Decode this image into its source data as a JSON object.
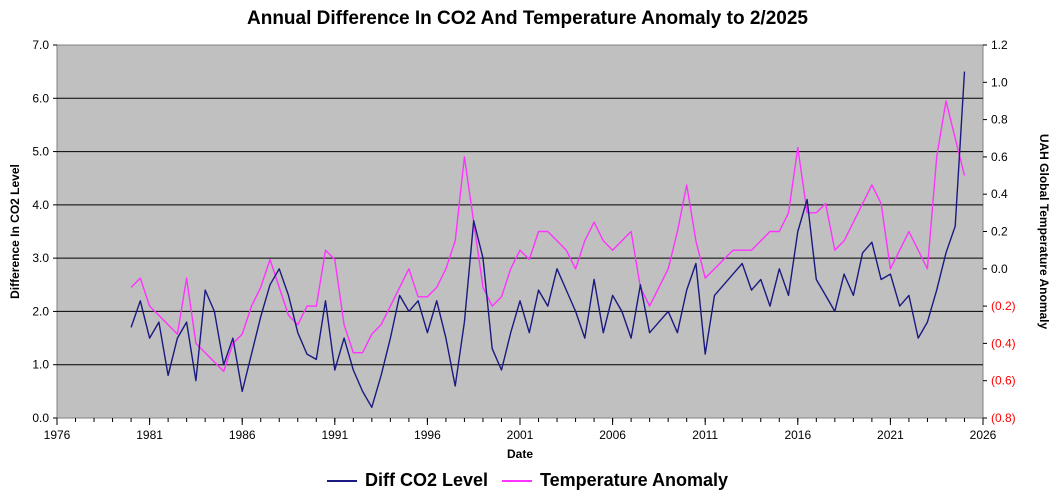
{
  "chart_data": {
    "type": "line",
    "title": "Annual Difference In CO2  And Temperature Anomaly to 2/2025",
    "xlabel": "Date",
    "ylabel": "Difference In CO2 Level",
    "y2label": "UAH Global Temperature Anomaly",
    "xlim": [
      1976,
      2026
    ],
    "ylim": [
      0,
      7
    ],
    "y2lim": [
      -0.8,
      1.2
    ],
    "x_ticks": [
      "1976",
      "1981",
      "1986",
      "1991",
      "1996",
      "2001",
      "2006",
      "2011",
      "2016",
      "2021",
      "2026"
    ],
    "y_ticks": [
      "0.0",
      "1.0",
      "2.0",
      "3.0",
      "4.0",
      "5.0",
      "6.0",
      "7.0"
    ],
    "y2_ticks": [
      "(0.8)",
      "(0.6)",
      "(0.4)",
      "(0.2)",
      "0.0",
      "0.2",
      "0.4",
      "0.6",
      "0.8",
      "1.0",
      "1.2"
    ],
    "grid": "horizontal",
    "legend": "bottom",
    "series": [
      {
        "name": "Diff CO2 Level",
        "color": "#1a1a80",
        "axis": "left",
        "x": [
          1980.0,
          1980.5,
          1981.0,
          1981.5,
          1982.0,
          1982.5,
          1983.0,
          1983.5,
          1984.0,
          1984.5,
          1985.0,
          1985.5,
          1986.0,
          1986.5,
          1987.0,
          1987.5,
          1988.0,
          1988.5,
          1989.0,
          1989.5,
          1990.0,
          1990.5,
          1991.0,
          1991.5,
          1992.0,
          1992.5,
          1993.0,
          1993.5,
          1994.0,
          1994.5,
          1995.0,
          1995.5,
          1996.0,
          1996.5,
          1997.0,
          1997.5,
          1998.0,
          1998.5,
          1999.0,
          1999.5,
          2000.0,
          2000.5,
          2001.0,
          2001.5,
          2002.0,
          2002.5,
          2003.0,
          2003.5,
          2004.0,
          2004.5,
          2005.0,
          2005.5,
          2006.0,
          2006.5,
          2007.0,
          2007.5,
          2008.0,
          2008.5,
          2009.0,
          2009.5,
          2010.0,
          2010.5,
          2011.0,
          2011.5,
          2012.0,
          2012.5,
          2013.0,
          2013.5,
          2014.0,
          2014.5,
          2015.0,
          2015.5,
          2016.0,
          2016.5,
          2017.0,
          2017.5,
          2018.0,
          2018.5,
          2019.0,
          2019.5,
          2020.0,
          2020.5,
          2021.0,
          2021.5,
          2022.0,
          2022.5,
          2023.0,
          2023.5,
          2024.0,
          2024.5,
          2025.0
        ],
        "values": [
          1.7,
          2.2,
          1.5,
          1.8,
          0.8,
          1.5,
          1.8,
          0.7,
          2.4,
          2.0,
          1.0,
          1.5,
          0.5,
          1.2,
          1.9,
          2.5,
          2.8,
          2.3,
          1.6,
          1.2,
          1.1,
          2.2,
          0.9,
          1.5,
          0.9,
          0.5,
          0.2,
          0.8,
          1.5,
          2.3,
          2.0,
          2.2,
          1.6,
          2.2,
          1.5,
          0.6,
          1.8,
          3.7,
          3.0,
          1.3,
          0.9,
          1.6,
          2.2,
          1.6,
          2.4,
          2.1,
          2.8,
          2.4,
          2.0,
          1.5,
          2.6,
          1.6,
          2.3,
          2.0,
          1.5,
          2.5,
          1.6,
          1.8,
          2.0,
          1.6,
          2.4,
          2.9,
          1.2,
          2.3,
          2.5,
          2.7,
          2.9,
          2.4,
          2.6,
          2.1,
          2.8,
          2.3,
          3.5,
          4.1,
          2.6,
          2.3,
          2.0,
          2.7,
          2.3,
          3.1,
          3.3,
          2.6,
          2.7,
          2.1,
          2.3,
          1.5,
          1.8,
          2.4,
          3.1,
          3.6,
          6.5
        ]
      },
      {
        "name": "Temperature Anomaly",
        "color": "#ff33ff",
        "axis": "right",
        "x": [
          1980.0,
          1980.5,
          1981.0,
          1981.5,
          1982.0,
          1982.5,
          1983.0,
          1983.5,
          1984.0,
          1984.5,
          1985.0,
          1985.5,
          1986.0,
          1986.5,
          1987.0,
          1987.5,
          1988.0,
          1988.5,
          1989.0,
          1989.5,
          1990.0,
          1990.5,
          1991.0,
          1991.5,
          1992.0,
          1992.5,
          1993.0,
          1993.5,
          1994.0,
          1994.5,
          1995.0,
          1995.5,
          1996.0,
          1996.5,
          1997.0,
          1997.5,
          1998.0,
          1998.5,
          1999.0,
          1999.5,
          2000.0,
          2000.5,
          2001.0,
          2001.5,
          2002.0,
          2002.5,
          2003.0,
          2003.5,
          2004.0,
          2004.5,
          2005.0,
          2005.5,
          2006.0,
          2006.5,
          2007.0,
          2007.5,
          2008.0,
          2008.5,
          2009.0,
          2009.5,
          2010.0,
          2010.5,
          2011.0,
          2011.5,
          2012.0,
          2012.5,
          2013.0,
          2013.5,
          2014.0,
          2014.5,
          2015.0,
          2015.5,
          2016.0,
          2016.5,
          2017.0,
          2017.5,
          2018.0,
          2018.5,
          2019.0,
          2019.5,
          2020.0,
          2020.5,
          2021.0,
          2021.5,
          2022.0,
          2022.5,
          2023.0,
          2023.5,
          2024.0,
          2024.5,
          2025.0
        ],
        "values": [
          -0.1,
          -0.05,
          -0.2,
          -0.25,
          -0.3,
          -0.35,
          -0.05,
          -0.4,
          -0.45,
          -0.5,
          -0.55,
          -0.4,
          -0.35,
          -0.2,
          -0.1,
          0.05,
          -0.1,
          -0.25,
          -0.3,
          -0.2,
          -0.2,
          0.1,
          0.05,
          -0.3,
          -0.45,
          -0.45,
          -0.35,
          -0.3,
          -0.2,
          -0.1,
          0.0,
          -0.15,
          -0.15,
          -0.1,
          0.0,
          0.15,
          0.6,
          0.25,
          -0.1,
          -0.2,
          -0.15,
          0.0,
          0.1,
          0.05,
          0.2,
          0.2,
          0.15,
          0.1,
          0.0,
          0.15,
          0.25,
          0.15,
          0.1,
          0.15,
          0.2,
          -0.1,
          -0.2,
          -0.1,
          0.0,
          0.2,
          0.45,
          0.15,
          -0.05,
          0.0,
          0.05,
          0.1,
          0.1,
          0.1,
          0.15,
          0.2,
          0.2,
          0.3,
          0.65,
          0.3,
          0.3,
          0.35,
          0.1,
          0.15,
          0.25,
          0.35,
          0.45,
          0.35,
          0.0,
          0.1,
          0.2,
          0.1,
          0.0,
          0.6,
          0.9,
          0.7,
          0.5
        ]
      }
    ]
  }
}
